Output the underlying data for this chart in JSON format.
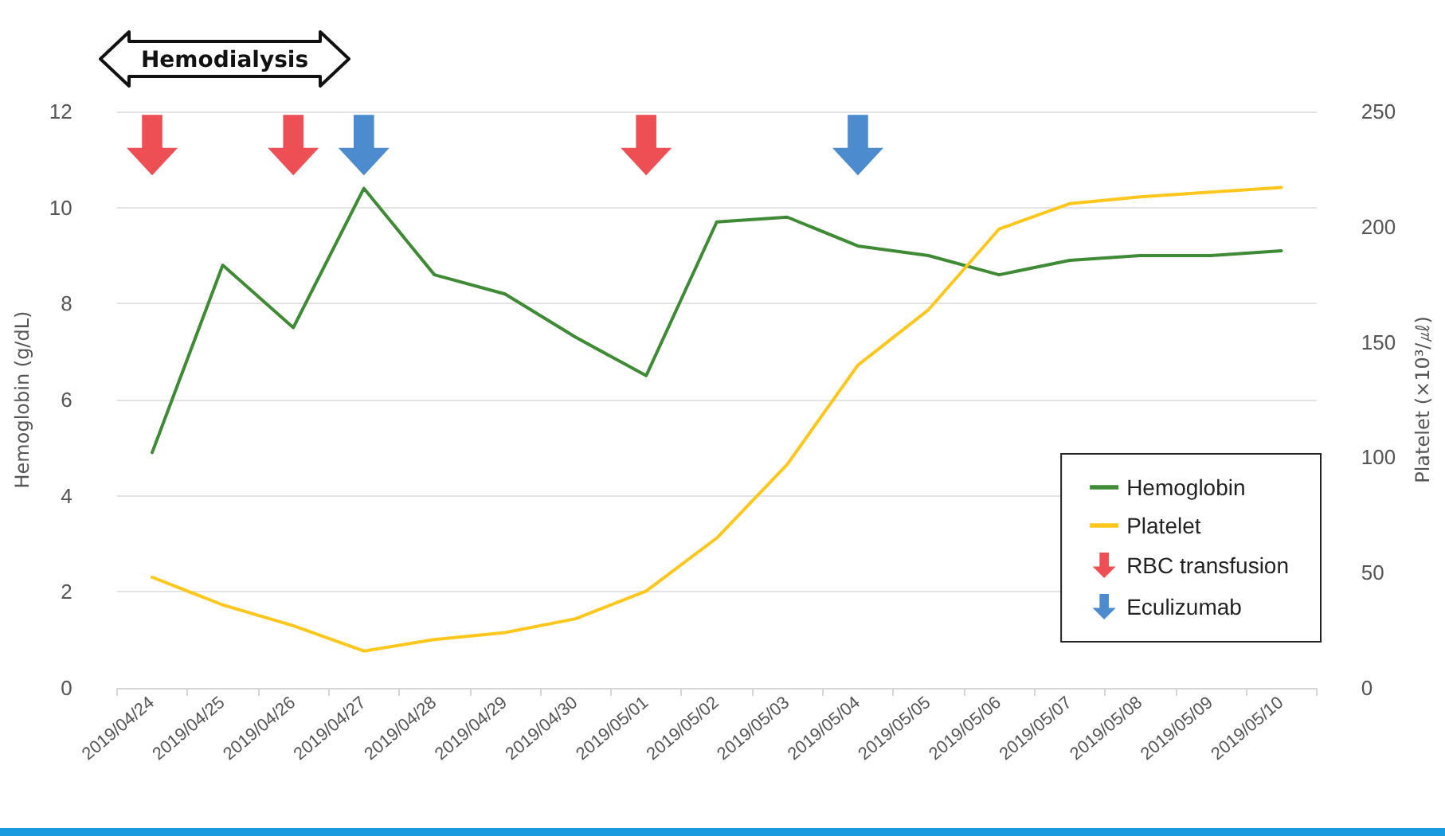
{
  "chart_data": {
    "type": "line",
    "ylabel": "Hemoglobin (g/dL)",
    "y2label": "Platelet (×10³/㎕)",
    "annotations": [
      "Hemodialysis"
    ],
    "categories": [
      "2019/04/24",
      "2019/04/25",
      "2019/04/26",
      "2019/04/27",
      "2019/04/28",
      "2019/04/29",
      "2019/04/30",
      "2019/05/01",
      "2019/05/02",
      "2019/05/03",
      "2019/05/04",
      "2019/05/05",
      "2019/05/06",
      "2019/05/07",
      "2019/05/08",
      "2019/05/09",
      "2019/05/10"
    ],
    "series": [
      {
        "name": "Hemoglobin",
        "color": "#3e8a35",
        "values": [
          4.9,
          8.8,
          7.5,
          10.4,
          8.6,
          8.2,
          7.3,
          6.5,
          9.7,
          9.8,
          9.2,
          9.0,
          8.6,
          8.9,
          9.0,
          9.0,
          9.1
        ]
      },
      {
        "name": "Platelet",
        "color": "#ffc71c",
        "axis": "y2",
        "values": [
          48,
          36,
          27,
          16,
          21,
          24,
          30,
          42,
          65,
          97,
          140,
          164,
          199,
          210,
          213,
          215,
          217
        ]
      },
      {
        "name": "RBC transfusion",
        "type": "scatter",
        "color": "#e8232b",
        "x": [
          "2019/04/24",
          "2019/04/26",
          "2019/05/01"
        ],
        "values": [
          11.3,
          11.3,
          11.3
        ]
      },
      {
        "name": "Eculizumab",
        "type": "scatter",
        "color": "#1f6ec0",
        "x": [
          "2019/04/27",
          "2019/05/04"
        ],
        "values": [
          11.3,
          11.3
        ]
      }
    ],
    "ylim": [
      0,
      12
    ],
    "yticks": [
      0,
      2,
      4,
      6,
      8,
      10,
      12
    ],
    "y2lim": [
      0,
      250
    ],
    "y2ticks": [
      0,
      50,
      100,
      150,
      200,
      250
    ],
    "grid": "y",
    "legend": "bottom right"
  }
}
